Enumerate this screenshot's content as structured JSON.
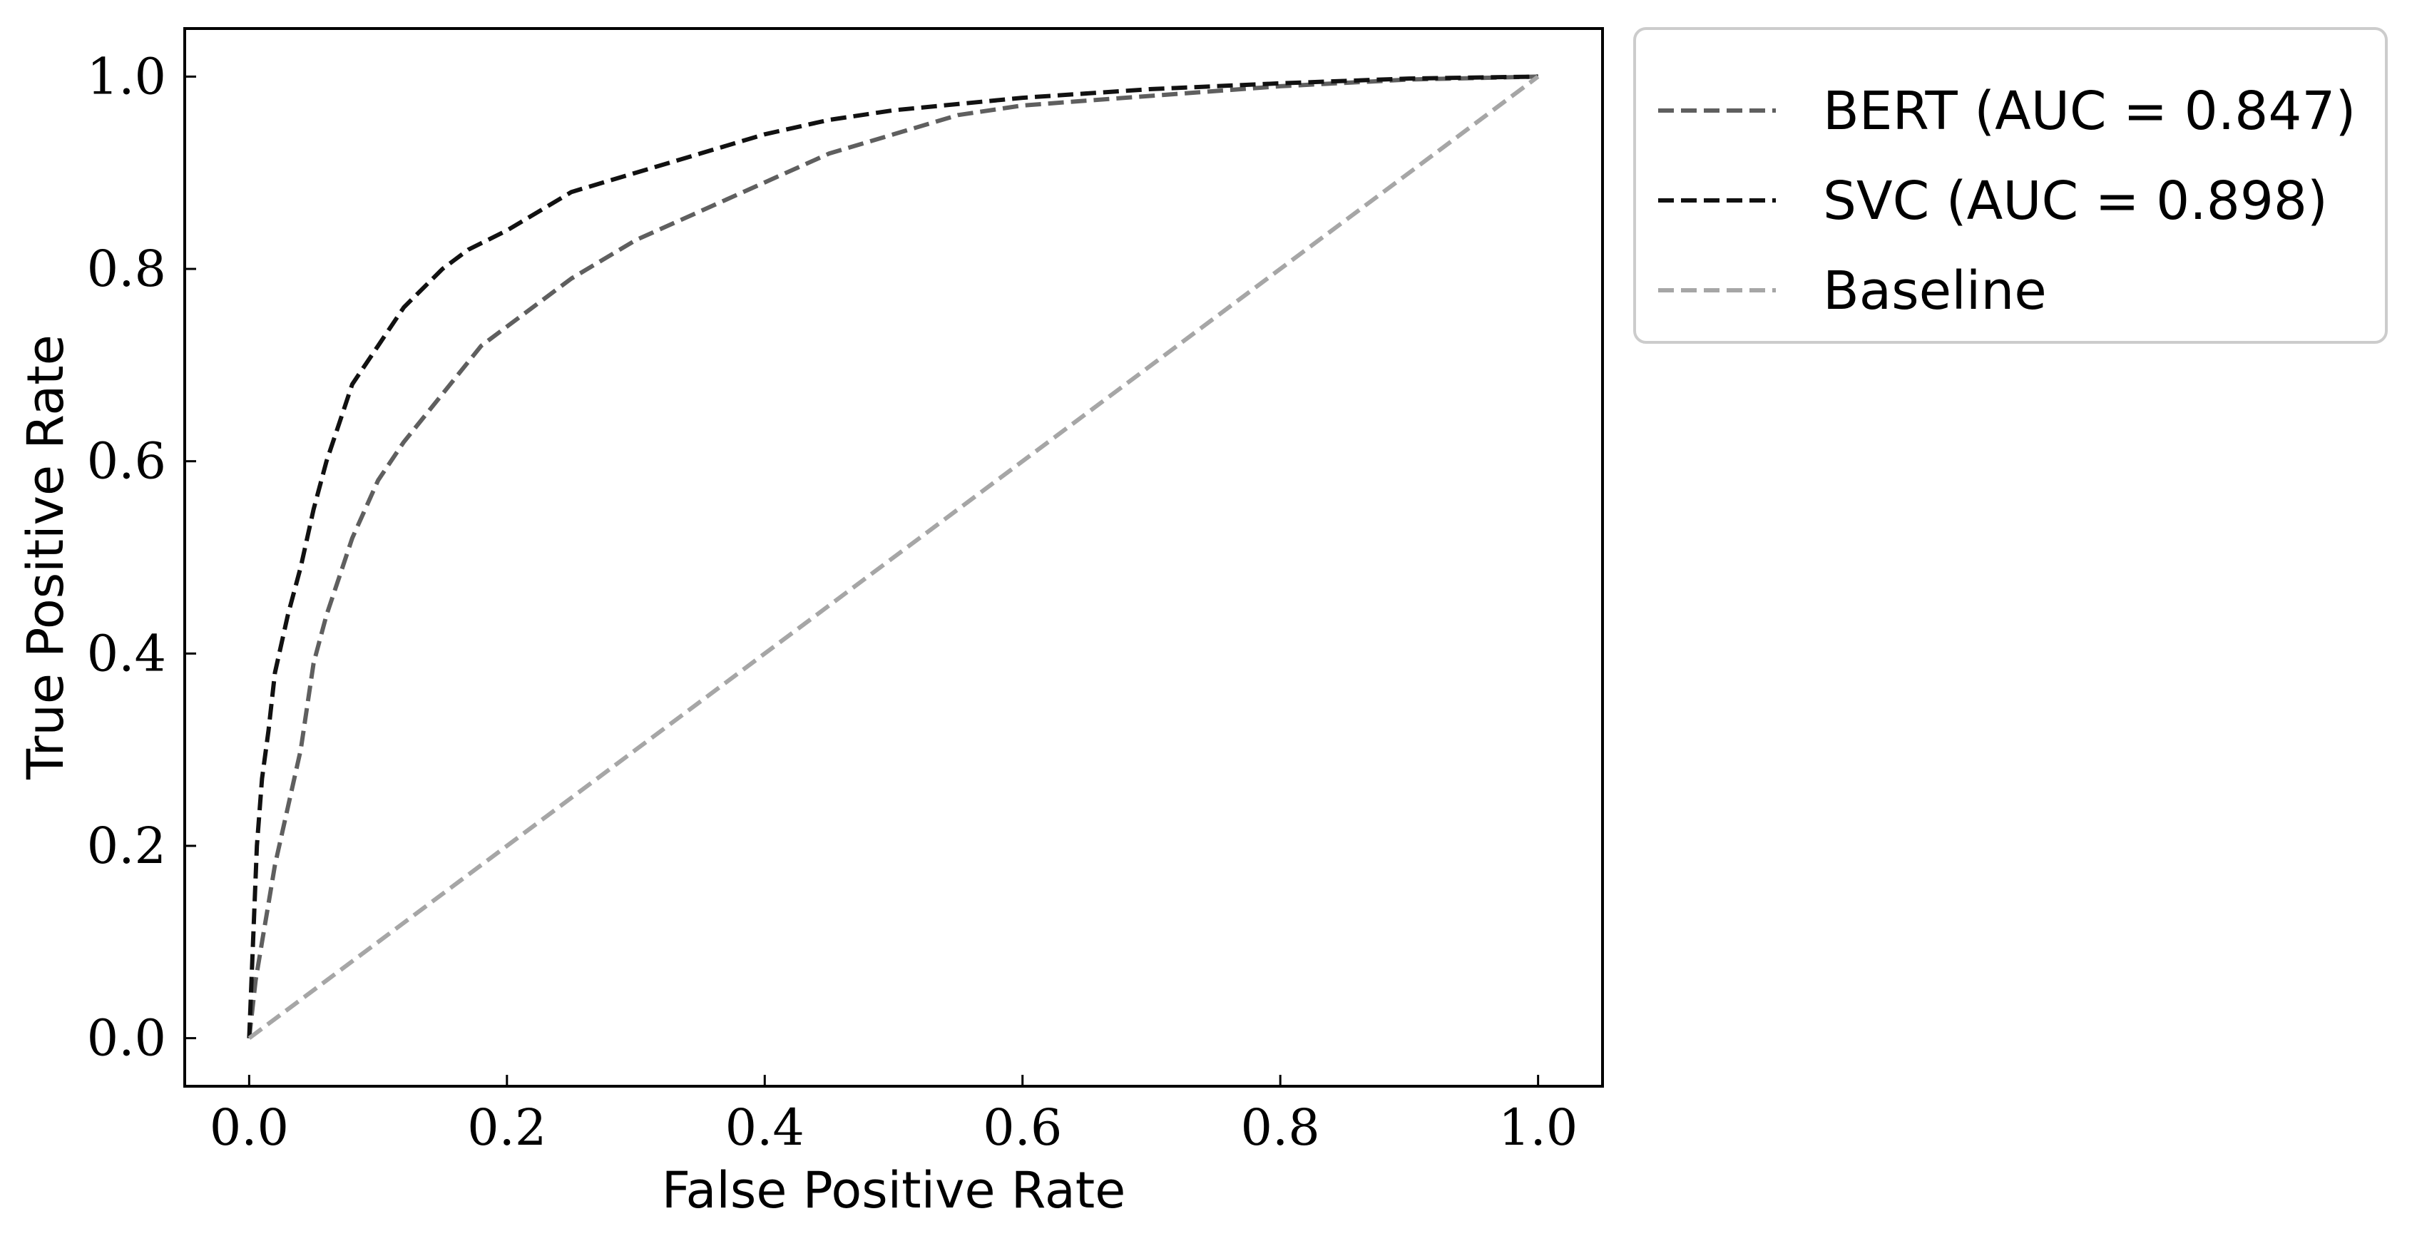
{
  "chart_data": {
    "type": "line",
    "title": "",
    "xlabel": "False Positive Rate",
    "ylabel": "True Positive Rate",
    "xlim": [
      -0.05,
      1.05
    ],
    "ylim": [
      -0.05,
      1.05
    ],
    "xticks": [
      0.0,
      0.2,
      0.4,
      0.6,
      0.8,
      1.0
    ],
    "yticks": [
      0.0,
      0.2,
      0.4,
      0.6,
      0.8,
      1.0
    ],
    "xtick_labels": [
      "0.0",
      "0.2",
      "0.4",
      "0.6",
      "0.8",
      "1.0"
    ],
    "ytick_labels": [
      "0.0",
      "0.2",
      "0.4",
      "0.6",
      "0.8",
      "1.0"
    ],
    "grid": false,
    "legend_position": "outside-top-right",
    "series": [
      {
        "name": "BERT (AUC = 0.847)",
        "color": "#5f5f5f",
        "line_style": "dashed",
        "x": [
          0.0,
          0.005,
          0.01,
          0.015,
          0.02,
          0.03,
          0.04,
          0.05,
          0.06,
          0.07,
          0.08,
          0.1,
          0.12,
          0.15,
          0.18,
          0.2,
          0.25,
          0.3,
          0.35,
          0.4,
          0.45,
          0.5,
          0.55,
          0.6,
          0.65,
          0.7,
          0.8,
          0.9,
          1.0
        ],
        "y": [
          0.0,
          0.06,
          0.1,
          0.14,
          0.18,
          0.24,
          0.3,
          0.39,
          0.44,
          0.48,
          0.52,
          0.58,
          0.62,
          0.67,
          0.72,
          0.74,
          0.79,
          0.83,
          0.86,
          0.89,
          0.92,
          0.94,
          0.96,
          0.97,
          0.975,
          0.98,
          0.99,
          0.997,
          1.0
        ]
      },
      {
        "name": "SVC (AUC = 0.898)",
        "color": "#111111",
        "line_style": "dashed",
        "x": [
          0.0,
          0.003,
          0.006,
          0.01,
          0.015,
          0.02,
          0.03,
          0.04,
          0.05,
          0.06,
          0.07,
          0.08,
          0.1,
          0.12,
          0.15,
          0.17,
          0.2,
          0.25,
          0.3,
          0.35,
          0.4,
          0.45,
          0.5,
          0.6,
          0.7,
          0.8,
          0.9,
          1.0
        ],
        "y": [
          0.0,
          0.1,
          0.2,
          0.27,
          0.32,
          0.38,
          0.44,
          0.49,
          0.55,
          0.6,
          0.64,
          0.68,
          0.72,
          0.76,
          0.8,
          0.82,
          0.84,
          0.88,
          0.9,
          0.92,
          0.94,
          0.955,
          0.965,
          0.978,
          0.987,
          0.993,
          0.998,
          1.0
        ]
      },
      {
        "name": "Baseline",
        "color": "#a6a6a6",
        "line_style": "dashed",
        "x": [
          0.0,
          1.0
        ],
        "y": [
          0.0,
          1.0
        ]
      }
    ]
  }
}
